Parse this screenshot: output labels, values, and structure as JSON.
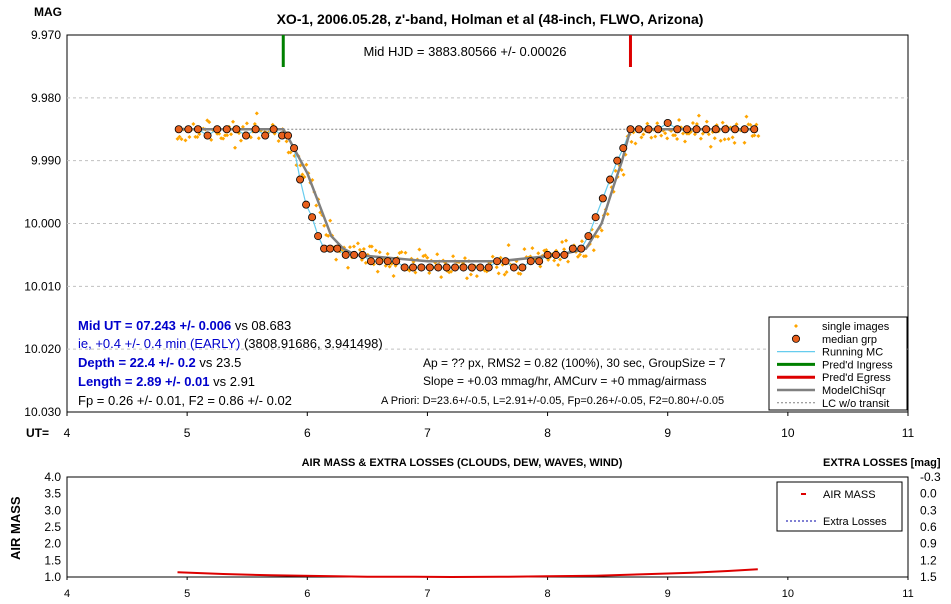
{
  "chart_data": [
    {
      "type": "scatter",
      "title": "XO-1, 2006.05.28, z'-band, Holman et al (48-inch, FLWO, Arizona)",
      "ylabel": "MAG",
      "xlabel": "UT=",
      "xlim": [
        4,
        11
      ],
      "ylim": [
        9.97,
        10.03
      ],
      "y_inverted": true,
      "x_ticks": [
        "4",
        "5",
        "6",
        "7",
        "8",
        "9",
        "10",
        "11"
      ],
      "y_ticks": [
        "9.970",
        "9.980",
        "9.990",
        "10.000",
        "10.010",
        "10.020",
        "10.030"
      ],
      "grid": "horizontal dashed",
      "legend_position": "bottom-right",
      "legend": [
        "single images",
        "median grp",
        "Running MC",
        "Pred'd Ingress",
        "Pred'd Egress",
        "ModelChiSqr",
        "LC w/o transit"
      ],
      "annotations": {
        "mid_hjd": "Mid HJD = 3883.80566 +/- 0.00026",
        "mid_ut_bold": "Mid UT = 07.243 +/- 0.006",
        "mid_ut_vs": " vs 08.683",
        "early_blue": "ie, +0.4 +/- 0.4 min (EARLY)",
        "early_tail": " (3808.91686, 3.941498)",
        "depth_bold": "Depth = 22.4 +/- 0.2",
        "depth_vs": " vs 23.5",
        "length_bold": "Length = 2.89 +/- 0.01",
        "length_vs": " vs 2.91",
        "fp": "Fp = 0.26 +/- 0.01, F2 = 0.86 +/- 0.02",
        "ap": "Ap = ?? px, RMS2 = 0.82 (100%), 30 sec, GroupSize = 7",
        "slope": "Slope = +0.03 mmag/hr, AMCurv = +0 mmag/airmass",
        "apriori": "A Priori: D=23.6+/-0.5, L=2.91+/-0.05, Fp=0.26+/-0.05, F2=0.80+/-0.05"
      },
      "predicted_ingress_ut": 5.8,
      "predicted_egress_ut": 8.69,
      "out_of_transit_mag": 9.985,
      "model": {
        "x": [
          4.92,
          5.8,
          5.86,
          6.0,
          6.1,
          6.2,
          6.3,
          6.4,
          7.0,
          7.6,
          8.1,
          8.32,
          8.45,
          8.55,
          8.62,
          8.69,
          9.75
        ],
        "y": [
          9.985,
          9.985,
          9.987,
          9.992,
          9.997,
          10.002,
          10.004,
          10.005,
          10.006,
          10.006,
          10.005,
          10.004,
          10.0,
          9.994,
          9.99,
          9.985,
          9.985
        ]
      },
      "median_grp": {
        "x": [
          4.93,
          5.01,
          5.09,
          5.17,
          5.25,
          5.33,
          5.41,
          5.49,
          5.57,
          5.65,
          5.72,
          5.79,
          5.84,
          5.89,
          5.94,
          5.99,
          6.04,
          6.09,
          6.14,
          6.19,
          6.25,
          6.32,
          6.39,
          6.46,
          6.53,
          6.6,
          6.67,
          6.74,
          6.81,
          6.88,
          6.95,
          7.02,
          7.09,
          7.16,
          7.23,
          7.3,
          7.37,
          7.44,
          7.51,
          7.58,
          7.65,
          7.72,
          7.79,
          7.86,
          7.93,
          8.0,
          8.07,
          8.14,
          8.21,
          8.28,
          8.34,
          8.4,
          8.46,
          8.52,
          8.58,
          8.63,
          8.69,
          8.76,
          8.84,
          8.92,
          9.0,
          9.08,
          9.16,
          9.24,
          9.32,
          9.4,
          9.48,
          9.56,
          9.64,
          9.72
        ],
        "y": [
          9.985,
          9.985,
          9.985,
          9.986,
          9.985,
          9.985,
          9.985,
          9.986,
          9.985,
          9.986,
          9.985,
          9.986,
          9.986,
          9.988,
          9.993,
          9.997,
          9.999,
          10.002,
          10.004,
          10.004,
          10.004,
          10.005,
          10.005,
          10.005,
          10.006,
          10.006,
          10.006,
          10.006,
          10.007,
          10.007,
          10.007,
          10.007,
          10.007,
          10.007,
          10.007,
          10.007,
          10.007,
          10.007,
          10.007,
          10.006,
          10.006,
          10.007,
          10.007,
          10.006,
          10.006,
          10.005,
          10.005,
          10.005,
          10.004,
          10.004,
          10.002,
          9.999,
          9.996,
          9.993,
          9.99,
          9.988,
          9.985,
          9.985,
          9.985,
          9.985,
          9.984,
          9.985,
          9.985,
          9.985,
          9.985,
          9.985,
          9.985,
          9.985,
          9.985,
          9.985
        ]
      },
      "single_images_note": "~300 individual measurements scattered about the median groups with ~0.002 mag noise"
    },
    {
      "type": "line",
      "title": "AIR MASS & EXTRA LOSSES (CLOUDS, DEW, WAVES, WIND)",
      "ylabel": "AIR MASS",
      "y2label": "EXTRA LOSSES [mag]",
      "xlim": [
        4,
        11
      ],
      "ylim": [
        1.0,
        4.0
      ],
      "y2lim": [
        1.5,
        -0.3
      ],
      "x_ticks": [
        "4",
        "5",
        "6",
        "7",
        "8",
        "9",
        "10",
        "11"
      ],
      "y_ticks": [
        "1.0",
        "1.5",
        "2.0",
        "2.5",
        "3.0",
        "3.5",
        "4.0"
      ],
      "y2_ticks": [
        "1.5",
        "1.2",
        "0.9",
        "0.6",
        "0.3",
        "0.0",
        "-0.3"
      ],
      "legend_position": "top-right",
      "legend": [
        "AIR MASS",
        "Extra Losses"
      ],
      "air_mass": {
        "x": [
          4.92,
          5.3,
          5.7,
          6.1,
          6.5,
          6.9,
          7.2,
          7.6,
          8.0,
          8.4,
          8.8,
          9.2,
          9.5,
          9.75
        ],
        "y": [
          1.14,
          1.09,
          1.05,
          1.03,
          1.01,
          1.005,
          1.0,
          1.005,
          1.02,
          1.04,
          1.08,
          1.13,
          1.18,
          1.23
        ]
      },
      "extra_losses": {
        "x": [],
        "y": []
      }
    }
  ]
}
